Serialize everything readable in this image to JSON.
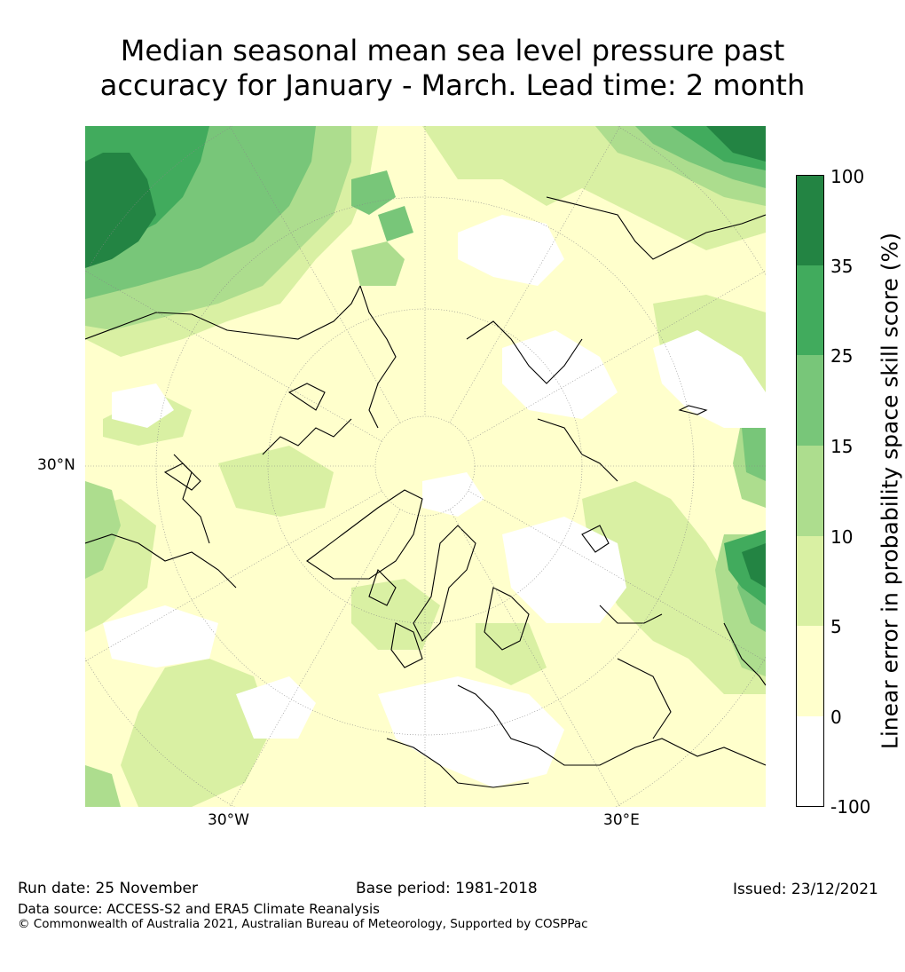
{
  "title": {
    "line1": "Median seasonal mean sea level pressure past",
    "line2": "accuracy for January - March. Lead time: 2 month"
  },
  "map": {
    "projection": "north-polar-stereographic",
    "lat_label": "30°N",
    "lon_labels": [
      "30°W",
      "30°E"
    ]
  },
  "colorbar": {
    "label": "Linear error in probability space skill score (%)",
    "ticks": [
      "100",
      "35",
      "25",
      "15",
      "10",
      "5",
      "0",
      "-100"
    ],
    "bins": [
      {
        "range": "-100 to 0",
        "color": "#ffffff"
      },
      {
        "range": "0 to 5",
        "color": "#ffffcc"
      },
      {
        "range": "5 to 10",
        "color": "#d9f0a3"
      },
      {
        "range": "10 to 15",
        "color": "#addd8e"
      },
      {
        "range": "15 to 25",
        "color": "#78c679"
      },
      {
        "range": "25 to 35",
        "color": "#41ab5d"
      },
      {
        "range": "35 to 100",
        "color": "#238443"
      }
    ]
  },
  "footer": {
    "run_date": "Run date: 25 November",
    "base_period": "Base period: 1981-2018",
    "issued": "Issued: 23/12/2021",
    "data_source": "Data source: ACCESS-S2 and ERA5 Climate Reanalysis",
    "copyright": "© Commonwealth of Australia 2021, Australian Bureau of Meteorology, Supported by COSPPac"
  }
}
